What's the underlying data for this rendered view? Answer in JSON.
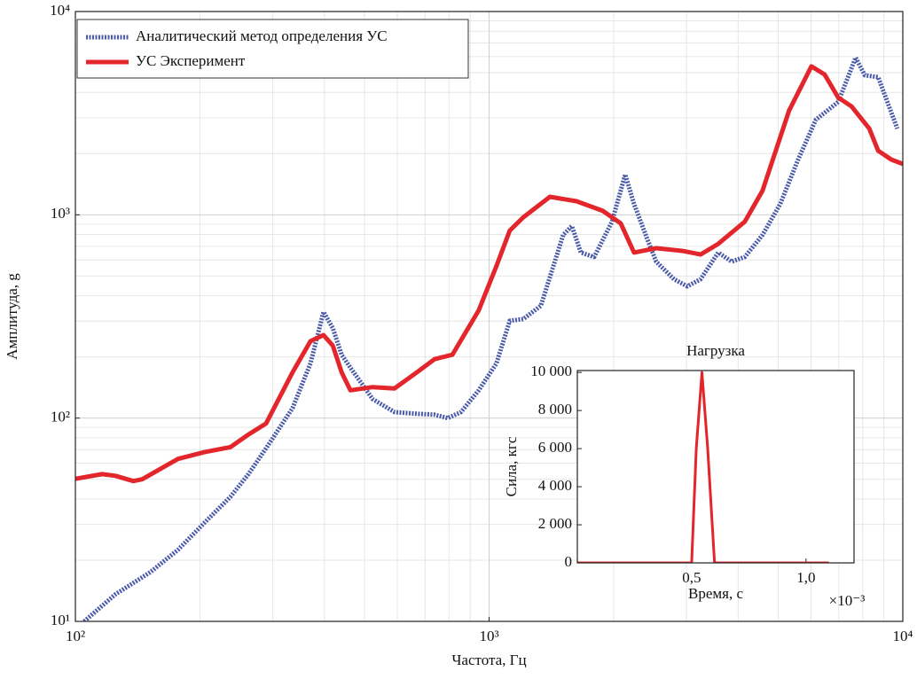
{
  "chart_data": [
    {
      "type": "line",
      "xlabel": "Частота, Гц",
      "ylabel": "Амплитуда, g",
      "xlog": true,
      "ylog": true,
      "grid": true,
      "minor_grid": true,
      "legend": "upper left",
      "xlim": [
        100,
        10000
      ],
      "ylim": [
        10,
        10000
      ],
      "xticks": [
        {
          "value": 100,
          "label": "10²"
        },
        {
          "value": 1000,
          "label": "10³"
        },
        {
          "value": 10000,
          "label": "10⁴"
        }
      ],
      "yticks": [
        {
          "value": 10,
          "label": "10¹"
        },
        {
          "value": 100,
          "label": "10²"
        },
        {
          "value": 1000,
          "label": "10³"
        },
        {
          "value": 10000,
          "label": "10⁴"
        }
      ],
      "series": [
        {
          "name": "Аналитический метод определения УС",
          "color": "#4a5aa8",
          "style": "dotted",
          "x": [
            105,
            125,
            152,
            177,
            205,
            237,
            262,
            289,
            335,
            370,
            398,
            419,
            440,
            462,
            523,
            591,
            669,
            738,
            794,
            855,
            944,
            1042,
            1122,
            1210,
            1334,
            1510,
            1585,
            1667,
            1795,
            1982,
            2133,
            2240,
            2413,
            2534,
            2799,
            3013,
            3243,
            3581,
            3855,
            4150,
            4581,
            5058,
            5585,
            6166,
            6980,
            7691,
            8091,
            8718,
            9698
          ],
          "values": [
            10,
            13.6,
            17.5,
            22.5,
            30.5,
            41,
            53,
            71,
            112,
            186,
            333,
            277,
            205,
            177,
            124,
            107,
            105,
            104,
            100,
            107,
            137,
            186,
            301,
            307,
            357,
            796,
            881,
            652,
            620,
            925,
            1578,
            1133,
            757,
            589,
            482,
            445,
            482,
            652,
            589,
            620,
            796,
            1133,
            1871,
            2937,
            3592,
            5930,
            4856,
            4755,
            2655
          ]
        },
        {
          "name": "УС Эксперимент",
          "color": "#e3262b",
          "style": "solid",
          "x": [
            100,
            116,
            125,
            138,
            145,
            177,
            205,
            237,
            262,
            289,
            335,
            370,
            398,
            419,
            440,
            462,
            523,
            591,
            669,
            738,
            815,
            944,
            1042,
            1122,
            1210,
            1403,
            1626,
            1884,
            2080,
            2240,
            2534,
            2938,
            3243,
            3581,
            4150,
            4581,
            5309,
            6011,
            6470,
            6980,
            7518,
            8298,
            8718,
            9380,
            10000
          ],
          "values": [
            50.3,
            53,
            52,
            49,
            50,
            63,
            68,
            72,
            83,
            94,
            168,
            239,
            256,
            227,
            168,
            137,
            142,
            140,
            168,
            195,
            205,
            339,
            560,
            837,
            973,
            1226,
            1166,
            1045,
            908,
            652,
            685,
            664,
            638,
            720,
            925,
            1315,
            3251,
            5370,
            4900,
            3774,
            3413,
            2655,
            2066,
            1870,
            1779
          ]
        }
      ]
    },
    {
      "type": "line",
      "title": "Нагрузка",
      "xlabel": "Время, с",
      "ylabel": "Сила, кгс",
      "x_multiplier": "×10⁻³",
      "xlim": [
        0,
        1.21
      ],
      "ylim": [
        0,
        10100
      ],
      "xticks": [
        {
          "value": 0.5,
          "label": "0,5"
        },
        {
          "value": 1.0,
          "label": "1,0"
        }
      ],
      "yticks": [
        0,
        {
          "value": 2000,
          "label": "2 000"
        },
        {
          "value": 4000,
          "label": "4 000"
        },
        {
          "value": 6000,
          "label": "6 000"
        },
        {
          "value": 8000,
          "label": "8 000"
        },
        {
          "value": 10000,
          "label": "10 000"
        }
      ],
      "series": [
        {
          "color": "#e3262b",
          "style": "solid",
          "x": [
            0,
            0.5,
            0.52,
            0.545,
            0.57,
            0.6,
            1.1
          ],
          "values": [
            0,
            0,
            6000,
            10000,
            6000,
            0,
            0
          ]
        }
      ]
    }
  ]
}
